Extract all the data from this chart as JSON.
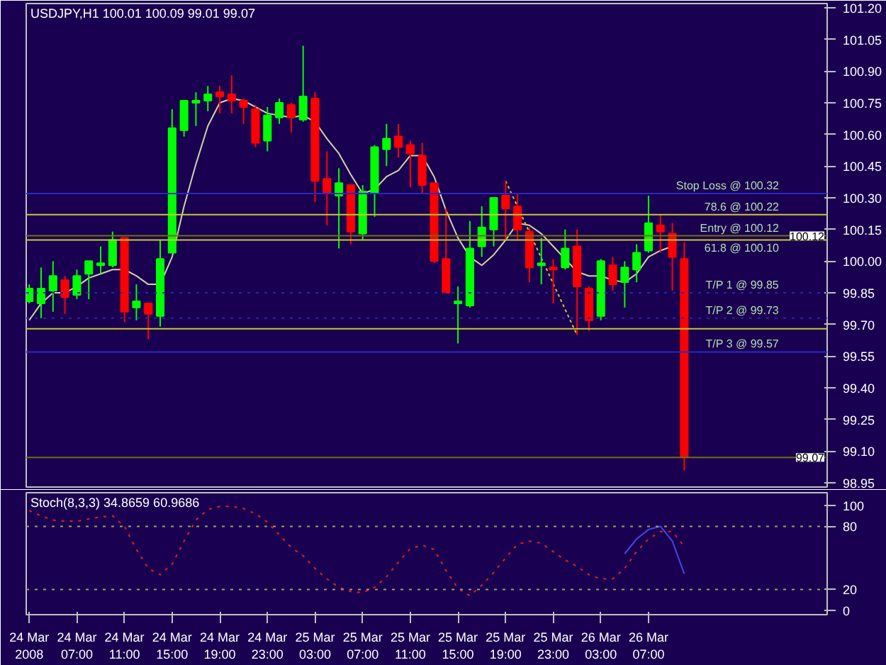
{
  "chart_data": [
    {
      "type": "candlestick",
      "title": "USDJPY,H1 100.01 100.09 99.01 99.07",
      "tick_labels": "y",
      "x": [
        "2008-03-24T03:00",
        "2008-03-24T04:00",
        "2008-03-24T05:00",
        "2008-03-24T06:00",
        "2008-03-24T07:00",
        "2008-03-24T08:00",
        "2008-03-24T09:00",
        "2008-03-24T10:00",
        "2008-03-24T11:00",
        "2008-03-24T12:00",
        "2008-03-24T13:00",
        "2008-03-24T14:00",
        "2008-03-24T15:00",
        "2008-03-24T16:00",
        "2008-03-24T17:00",
        "2008-03-24T18:00",
        "2008-03-24T19:00",
        "2008-03-24T20:00",
        "2008-03-24T21:00",
        "2008-03-24T22:00",
        "2008-03-24T23:00",
        "2008-03-25T00:00",
        "2008-03-25T01:00",
        "2008-03-25T02:00",
        "2008-03-25T03:00",
        "2008-03-25T04:00",
        "2008-03-25T05:00",
        "2008-03-25T06:00",
        "2008-03-25T07:00",
        "2008-03-25T08:00",
        "2008-03-25T09:00",
        "2008-03-25T10:00",
        "2008-03-25T11:00",
        "2008-03-25T12:00",
        "2008-03-25T13:00",
        "2008-03-25T14:00",
        "2008-03-25T15:00",
        "2008-03-25T16:00",
        "2008-03-25T17:00",
        "2008-03-25T18:00",
        "2008-03-25T19:00",
        "2008-03-25T20:00",
        "2008-03-25T21:00",
        "2008-03-25T22:00",
        "2008-03-25T23:00",
        "2008-03-26T00:00",
        "2008-03-26T01:00",
        "2008-03-26T02:00",
        "2008-03-26T03:00",
        "2008-03-26T04:00",
        "2008-03-26T05:00",
        "2008-03-26T06:00",
        "2008-03-26T07:00",
        "2008-03-26T08:00",
        "2008-03-26T09:00",
        "2008-03-26T10:00"
      ],
      "ohlc": [
        [
          99.81,
          99.89,
          99.8,
          99.87
        ],
        [
          99.8,
          99.97,
          99.73,
          99.87
        ],
        [
          99.86,
          100.0,
          99.76,
          99.93
        ],
        [
          99.91,
          99.93,
          99.75,
          99.83
        ],
        [
          99.84,
          99.96,
          99.82,
          99.93
        ],
        [
          99.94,
          100.0,
          99.82,
          100.0
        ],
        [
          99.98,
          100.07,
          99.94,
          99.99
        ],
        [
          99.98,
          100.14,
          99.97,
          100.1
        ],
        [
          100.11,
          100.11,
          99.71,
          99.76
        ],
        [
          99.78,
          99.89,
          99.72,
          99.81
        ],
        [
          99.8,
          99.8,
          99.63,
          99.75
        ],
        [
          99.74,
          100.1,
          99.69,
          100.01
        ],
        [
          100.04,
          100.72,
          100.04,
          100.63
        ],
        [
          100.62,
          100.76,
          100.59,
          100.76
        ],
        [
          100.75,
          100.8,
          100.64,
          100.76
        ],
        [
          100.76,
          100.83,
          100.71,
          100.79
        ],
        [
          100.8,
          100.83,
          100.7,
          100.78
        ],
        [
          100.79,
          100.88,
          100.7,
          100.76
        ],
        [
          100.76,
          100.77,
          100.65,
          100.73
        ],
        [
          100.72,
          100.74,
          100.54,
          100.56
        ],
        [
          100.57,
          100.73,
          100.52,
          100.69
        ],
        [
          100.68,
          100.77,
          100.65,
          100.75
        ],
        [
          100.74,
          100.75,
          100.61,
          100.68
        ],
        [
          100.67,
          101.02,
          100.66,
          100.78
        ],
        [
          100.77,
          100.8,
          100.28,
          100.38
        ],
        [
          100.39,
          100.52,
          100.17,
          100.32
        ],
        [
          100.31,
          100.44,
          100.06,
          100.37
        ],
        [
          100.36,
          100.36,
          100.08,
          100.14
        ],
        [
          100.13,
          100.36,
          100.1,
          100.33
        ],
        [
          100.32,
          100.55,
          100.21,
          100.54
        ],
        [
          100.53,
          100.65,
          100.45,
          100.58
        ],
        [
          100.59,
          100.65,
          100.49,
          100.54
        ],
        [
          100.55,
          100.57,
          100.35,
          100.51
        ],
        [
          100.5,
          100.56,
          100.32,
          100.36
        ],
        [
          100.37,
          100.37,
          99.99,
          100.0
        ],
        [
          100.01,
          100.25,
          99.85,
          99.85
        ],
        [
          99.8,
          99.88,
          99.61,
          99.81
        ],
        [
          99.79,
          100.19,
          99.78,
          100.06
        ],
        [
          100.07,
          100.26,
          100.02,
          100.16
        ],
        [
          100.15,
          100.3,
          100.07,
          100.3
        ],
        [
          100.31,
          100.38,
          100.1,
          100.25
        ],
        [
          100.26,
          100.32,
          100.1,
          100.15
        ],
        [
          100.14,
          100.16,
          99.9,
          99.97
        ],
        [
          99.98,
          100.11,
          99.89,
          99.99
        ],
        [
          99.97,
          100.01,
          99.8,
          99.96
        ],
        [
          99.97,
          100.15,
          99.96,
          100.06
        ],
        [
          100.07,
          100.15,
          99.65,
          99.88
        ],
        [
          99.87,
          99.88,
          99.67,
          99.72
        ],
        [
          99.74,
          100.01,
          99.72,
          100.0
        ],
        [
          99.98,
          100.02,
          99.86,
          99.89
        ],
        [
          99.9,
          100.0,
          99.78,
          99.97
        ],
        [
          99.96,
          100.08,
          99.9,
          100.04
        ],
        [
          100.05,
          100.31,
          100.04,
          100.18
        ],
        [
          100.17,
          100.22,
          100.04,
          100.14
        ],
        [
          100.13,
          100.18,
          99.86,
          100.02
        ],
        [
          100.01,
          100.09,
          99.01,
          99.07
        ]
      ],
      "colors": [
        "#00ff00",
        "#00ff00",
        "#00ff00",
        "#ff0000",
        "#00ff00",
        "#00ff00",
        "#00ff00",
        "#00ff00",
        "#ff0000",
        "#00ff00",
        "#ff0000",
        "#00ff00",
        "#00ff00",
        "#00ff00",
        "#00ff00",
        "#00ff00",
        "#ff0000",
        "#ff0000",
        "#ff0000",
        "#ff0000",
        "#00ff00",
        "#00ff00",
        "#ff0000",
        "#00ff00",
        "#ff0000",
        "#ff0000",
        "#00ff00",
        "#ff0000",
        "#00ff00",
        "#00ff00",
        "#00ff00",
        "#ff0000",
        "#ff0000",
        "#ff0000",
        "#ff0000",
        "#ff0000",
        "#00ff00",
        "#00ff00",
        "#00ff00",
        "#00ff00",
        "#ff0000",
        "#ff0000",
        "#ff0000",
        "#00ff00",
        "#ff0000",
        "#00ff00",
        "#ff0000",
        "#ff0000",
        "#00ff00",
        "#ff0000",
        "#00ff00",
        "#00ff00",
        "#00ff00",
        "#ff0000",
        "#ff0000",
        "#ff0000"
      ],
      "series": [
        {
          "type": "line",
          "color": "#d2d2aa",
          "values": [
            99.72,
            99.8,
            99.85,
            99.85,
            99.88,
            99.92,
            99.94,
            99.96,
            99.96,
            99.93,
            99.89,
            99.89,
            100.02,
            100.26,
            100.46,
            100.64,
            100.75,
            100.77,
            100.76,
            100.73,
            100.7,
            100.69,
            100.68,
            100.69,
            100.66,
            100.58,
            100.51,
            100.41,
            100.32,
            100.34,
            100.4,
            100.43,
            100.5,
            100.5,
            100.4,
            100.24,
            100.11,
            100.02,
            99.98,
            100.03,
            100.1,
            100.18,
            100.17,
            100.13,
            100.07,
            100.01,
            99.95,
            99.93,
            99.93,
            99.91,
            99.9,
            99.94,
            100.02,
            100.05,
            100.07,
            null
          ]
        },
        {
          "type": "line",
          "color": "#c8c832",
          "line_style": "dashed",
          "x": [
            "2008-03-25T19:00",
            "2008-03-26T01:00"
          ],
          "values": [
            100.38,
            99.65
          ]
        }
      ],
      "xlim": [
        "2008-03-24T02:45",
        "2008-03-26T22:00"
      ],
      "ylim": [
        98.93,
        101.22
      ],
      "yticks": [
        {
          "value": 101.2,
          "label": "101.20"
        },
        {
          "value": 101.05,
          "label": "101.05"
        },
        {
          "value": 100.9,
          "label": "100.90"
        },
        {
          "value": 100.75,
          "label": "100.75"
        },
        {
          "value": 100.6,
          "label": "100.60"
        },
        {
          "value": 100.45,
          "label": "100.45"
        },
        {
          "value": 100.3,
          "label": "100.30"
        },
        {
          "value": 100.15,
          "label": "100.15"
        },
        {
          "value": 100.0,
          "label": "100.00"
        },
        {
          "value": 99.85,
          "label": "99.85"
        },
        {
          "value": 99.7,
          "label": "99.70"
        },
        {
          "value": 99.55,
          "label": "99.55"
        },
        {
          "value": 99.4,
          "label": "99.40"
        },
        {
          "value": 99.25,
          "label": "99.25"
        },
        {
          "value": 99.1,
          "label": "99.10"
        },
        {
          "value": 98.95,
          "label": "98.95"
        }
      ],
      "ref_lines": [
        {
          "axis": "y",
          "value": 100.32,
          "label": "Stop Loss @ 100.32",
          "color": "#2828c8"
        },
        {
          "axis": "y",
          "value": 100.22,
          "label": "78.6 @ 100.22",
          "color": "#c8c832"
        },
        {
          "axis": "y",
          "value": 100.12,
          "label": "Entry @ 100.12",
          "color": "#6e6e14"
        },
        {
          "axis": "y",
          "value": 100.1,
          "label": "61.8 @ 100.10",
          "color": "#c8c832"
        },
        {
          "axis": "y",
          "value": 99.85,
          "label": "T/P 1 @ 99.85",
          "color": "#2828a0",
          "line_style": "dotted"
        },
        {
          "axis": "y",
          "value": 99.73,
          "label": "T/P 2 @ 99.73",
          "color": "#2828a0",
          "line_style": "dotted"
        },
        {
          "axis": "y",
          "value": 99.68,
          "color": "#c8c832"
        },
        {
          "axis": "y",
          "value": 99.57,
          "label": "T/P 3 @ 99.57",
          "color": "#2828c8"
        },
        {
          "axis": "y",
          "value": 99.07,
          "color": "#6e6e14"
        }
      ],
      "annotations": [
        {
          "text": "100.12",
          "y": 100.12
        },
        {
          "text": "99.07",
          "y": 99.07
        }
      ]
    },
    {
      "type": "line",
      "title": "Stoch(8,3,3) 34.8659 60.9686",
      "x": [
        "2008-03-24T03:00",
        "2008-03-24T04:00",
        "2008-03-24T05:00",
        "2008-03-24T06:00",
        "2008-03-24T07:00",
        "2008-03-24T08:00",
        "2008-03-24T09:00",
        "2008-03-24T10:00",
        "2008-03-24T11:00",
        "2008-03-24T12:00",
        "2008-03-24T13:00",
        "2008-03-24T14:00",
        "2008-03-24T15:00",
        "2008-03-24T16:00",
        "2008-03-24T17:00",
        "2008-03-24T18:00",
        "2008-03-24T19:00",
        "2008-03-24T20:00",
        "2008-03-24T21:00",
        "2008-03-24T22:00",
        "2008-03-24T23:00",
        "2008-03-25T00:00",
        "2008-03-25T01:00",
        "2008-03-25T02:00",
        "2008-03-25T03:00",
        "2008-03-25T04:00",
        "2008-03-25T05:00",
        "2008-03-25T06:00",
        "2008-03-25T07:00",
        "2008-03-25T08:00",
        "2008-03-25T09:00",
        "2008-03-25T10:00",
        "2008-03-25T11:00",
        "2008-03-25T12:00",
        "2008-03-25T13:00",
        "2008-03-25T14:00",
        "2008-03-25T15:00",
        "2008-03-25T16:00",
        "2008-03-25T17:00",
        "2008-03-25T18:00",
        "2008-03-25T19:00",
        "2008-03-25T20:00",
        "2008-03-25T21:00",
        "2008-03-25T22:00",
        "2008-03-25T23:00",
        "2008-03-26T00:00",
        "2008-03-26T01:00",
        "2008-03-26T02:00",
        "2008-03-26T03:00",
        "2008-03-26T04:00",
        "2008-03-26T05:00",
        "2008-03-26T06:00",
        "2008-03-26T07:00",
        "2008-03-26T08:00",
        "2008-03-26T09:00",
        "2008-03-26T10:00"
      ],
      "series": [
        {
          "color": "#4646e6",
          "line_style": "solid",
          "values": [
            null,
            null,
            null,
            null,
            null,
            null,
            null,
            null,
            null,
            null,
            null,
            null,
            null,
            null,
            null,
            null,
            null,
            null,
            null,
            null,
            null,
            null,
            null,
            null,
            null,
            null,
            null,
            null,
            null,
            null,
            null,
            null,
            null,
            null,
            null,
            null,
            null,
            null,
            null,
            null,
            null,
            null,
            null,
            null,
            null,
            null,
            null,
            null,
            null,
            null,
            54,
            68,
            77,
            80,
            66,
            34.8659
          ]
        },
        {
          "color": "#e02020",
          "line_style": "dotted",
          "values": [
            95,
            90,
            86,
            85,
            85,
            87,
            89,
            90,
            80,
            58,
            40,
            34,
            44,
            66,
            86,
            96,
            99,
            99,
            97,
            92,
            84,
            72,
            60,
            52,
            40,
            30,
            22,
            18,
            17,
            22,
            32,
            46,
            59,
            62,
            58,
            38,
            21,
            14,
            24,
            36,
            50,
            63,
            66,
            64,
            56,
            48,
            42,
            34,
            30,
            30,
            40,
            56,
            68,
            75,
            75,
            60.9686
          ]
        }
      ],
      "xlim": [
        "2008-03-24T02:45",
        "2008-03-26T22:00"
      ],
      "xticks": [
        {
          "value": "2008-03-24T03:00",
          "label": "24 Mar 2008"
        },
        {
          "value": "2008-03-24T07:00",
          "label": "24 Mar 07:00"
        },
        {
          "value": "2008-03-24T11:00",
          "label": "24 Mar 11:00"
        },
        {
          "value": "2008-03-24T15:00",
          "label": "24 Mar 15:00"
        },
        {
          "value": "2008-03-24T19:00",
          "label": "24 Mar 19:00"
        },
        {
          "value": "2008-03-24T23:00",
          "label": "24 Mar 23:00"
        },
        {
          "value": "2008-03-25T03:00",
          "label": "25 Mar 03:00"
        },
        {
          "value": "2008-03-25T07:00",
          "label": "25 Mar 07:00"
        },
        {
          "value": "2008-03-25T11:00",
          "label": "25 Mar 11:00"
        },
        {
          "value": "2008-03-25T15:00",
          "label": "25 Mar 15:00"
        },
        {
          "value": "2008-03-25T19:00",
          "label": "25 Mar 19:00"
        },
        {
          "value": "2008-03-25T23:00",
          "label": "25 Mar 23:00"
        },
        {
          "value": "2008-03-26T03:00",
          "label": "26 Mar 03:00"
        },
        {
          "value": "2008-03-26T07:00",
          "label": "26 Mar 07:00"
        }
      ],
      "ylim": [
        -4,
        112
      ],
      "yticks": [
        0,
        20,
        80,
        100
      ],
      "ref_lines": [
        {
          "axis": "y",
          "value": 80,
          "color": "#a0a060",
          "line_style": "dotted"
        },
        {
          "axis": "y",
          "value": 20,
          "color": "#a0a060",
          "line_style": "dotted"
        }
      ]
    }
  ]
}
